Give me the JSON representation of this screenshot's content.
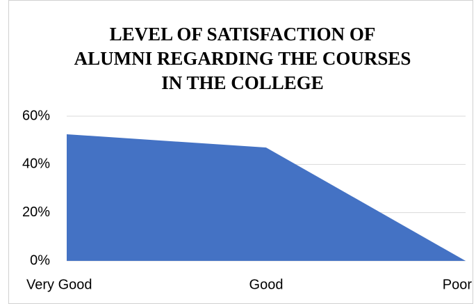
{
  "chart_data": {
    "type": "area",
    "title": "LEVEL OF SATISFACTION OF\nALUMNI REGARDING THE COURSES\nIN THE COLLEGE",
    "categories": [
      "Very Good",
      "Good",
      "Poor"
    ],
    "values": [
      52.5,
      47,
      0
    ],
    "color": "#4472c4",
    "ylim": [
      0,
      60
    ],
    "yticks": [
      {
        "value": 0,
        "label": "0%"
      },
      {
        "value": 20,
        "label": "20%"
      },
      {
        "value": 40,
        "label": "40%"
      },
      {
        "value": 60,
        "label": "60%"
      }
    ],
    "grid": true
  }
}
